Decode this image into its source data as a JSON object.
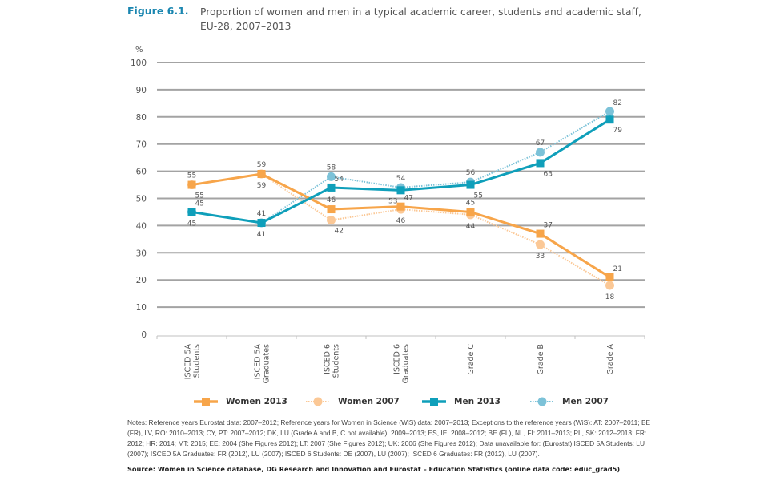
{
  "figure": {
    "label": "Figure 6.1.",
    "title": "Proportion of women and men in a typical academic career, students and academic staff, EU-28, 2007–2013"
  },
  "notes": "Notes: Reference years Eurostat data: 2007–2012; Reference years for Women in Science (WiS) data: 2007–2013; Exceptions to the reference years (WiS): AT: 2007–2011; BE (FR), LV, RO: 2010–2013; CY, PT: 2007–2012; DK, LU (Grade A and B, C not available): 2009–2013; ES, IE: 2008–2012; BE (FL), NL, FI: 2011–2013; PL, SK: 2012–2013; FR: 2012; HR: 2014; MT: 2015; EE: 2004 (She Figures 2012); LT: 2007 (She Figures 2012); UK: 2006 (She Figures 2012); Data unavailable for: (Eurostat) ISCED 5A Students: LU (2007); ISCED 5A Graduates: FR (2012), LU (2007); ISCED 6 Students: DE (2007), LU (2007); ISCED 6 Graduates: FR (2012), LU (2007).",
  "source": "Source: Women in Science database, DG Research and Innovation and Eurostat – Education Statistics (online data code: educ_grad5)",
  "chart_data": {
    "type": "line",
    "title": "Proportion of women and men in a typical academic career, students and academic staff, EU-28, 2007–2013",
    "xlabel": "",
    "ylabel": "%",
    "ylim": [
      0,
      100
    ],
    "yticks": [
      0,
      10,
      20,
      30,
      40,
      50,
      60,
      70,
      80,
      90,
      100
    ],
    "grid": true,
    "legend_position": "bottom",
    "categories": [
      "ISCED 5A Students",
      "ISCED 5A Graduates",
      "ISCED 6 Students",
      "ISCED 6 Graduates",
      "Grade C",
      "Grade B",
      "Grade A"
    ],
    "category_lines": [
      [
        "ISCED 5A",
        "Students"
      ],
      [
        "ISCED 5A",
        "Graduates"
      ],
      [
        "ISCED 6",
        "Students"
      ],
      [
        "ISCED 6",
        "Graduates"
      ],
      [
        "Grade C"
      ],
      [
        "Grade B"
      ],
      [
        "Grade A"
      ]
    ],
    "series": [
      {
        "name": "Women 2013",
        "values": [
          55,
          59,
          46,
          47,
          45,
          37,
          21
        ],
        "color": "#f7a54a",
        "style": "solid",
        "marker": "square",
        "label_side": [
          "below-right",
          "below",
          "above",
          "above-right",
          "above",
          "above-right",
          "above-right"
        ]
      },
      {
        "name": "Women 2007",
        "values": [
          55,
          59,
          42,
          46,
          44,
          33,
          18
        ],
        "color": "#fbc896",
        "style": "dotted",
        "marker": "circle",
        "label_side": [
          "above",
          "above",
          "below-right",
          "below",
          "below",
          "below",
          "below"
        ]
      },
      {
        "name": "Men 2013",
        "values": [
          45,
          41,
          54,
          53,
          55,
          63,
          79
        ],
        "color": "#0f9fba",
        "style": "solid",
        "marker": "square",
        "label_side": [
          "below",
          "below",
          "above-right",
          "below-left",
          "below-right",
          "below-right",
          "below-right"
        ]
      },
      {
        "name": "Men 2007",
        "values": [
          45,
          41,
          58,
          54,
          56,
          67,
          82
        ],
        "color": "#7cc2d8",
        "style": "dotted",
        "marker": "circle",
        "label_side": [
          "above-right",
          "above",
          "above",
          "above",
          "above",
          "above",
          "above-right"
        ]
      }
    ]
  }
}
